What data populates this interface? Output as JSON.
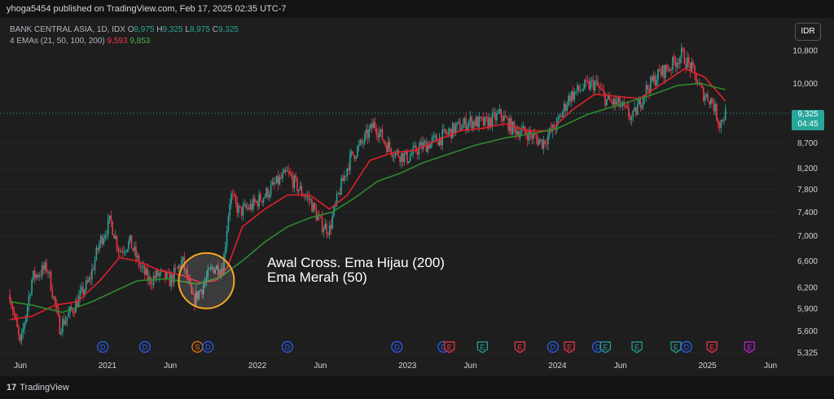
{
  "header": {
    "published_text": "yhoga5454 published on TradingView.com, Feb 17, 2025 02:35 UTC-7"
  },
  "legend": {
    "symbol_line": "BANK CENTRAL ASIA, 1D, IDX",
    "ohlc": {
      "o_label": "O",
      "o": "8,975",
      "h_label": "H",
      "h": "9,325",
      "l_label": "L",
      "l": "8,975",
      "c_label": "C",
      "c": "9,325"
    },
    "ema_label": "4 EMAs (21, 50, 100, 200)",
    "ema_val_red": "9,593",
    "ema_val_green": "9,853"
  },
  "currency_button": "IDR",
  "price_tag": {
    "price": "9,325",
    "countdown": "04:45"
  },
  "annotation": {
    "line1": "Awal Cross. Ema Hijau (200)",
    "line2": "Ema Merah (50)"
  },
  "footer": {
    "brand": "TradingView",
    "logo_mark": "17"
  },
  "colors": {
    "bg": "#1e1e1e",
    "up": "#26a69a",
    "down": "#f23645",
    "ema50": "#e0202c",
    "ema200": "#2e8b2e",
    "circle": "#f5a623"
  },
  "chart_data": {
    "type": "candlestick",
    "title": "BANK CENTRAL ASIA, 1D, IDX",
    "x_ticks": [
      "Jun",
      "2021",
      "Jun",
      "2022",
      "Jun",
      "2023",
      "Jun",
      "2024",
      "Jun",
      "2025",
      "Jun"
    ],
    "x_tick_dates": [
      2020.42,
      2021.0,
      2021.42,
      2022.0,
      2022.42,
      2023.0,
      2023.42,
      2024.0,
      2024.42,
      2025.0,
      2025.42
    ],
    "y_ticks": [
      5325,
      5600,
      5900,
      6200,
      6600,
      7000,
      7400,
      7800,
      8200,
      8700,
      10000,
      10800
    ],
    "y_tick_labels": [
      "5,325",
      "5,600",
      "5,900",
      "6,200",
      "6,600",
      "7,000",
      "7,400",
      "7,800",
      "8,200",
      "8,700",
      "10,000",
      "10,800"
    ],
    "price_axis": "log",
    "last_price": 9325,
    "close_path": [
      [
        2020.35,
        6100
      ],
      [
        2020.42,
        5400
      ],
      [
        2020.5,
        6350
      ],
      [
        2020.6,
        6500
      ],
      [
        2020.68,
        5650
      ],
      [
        2020.77,
        5900
      ],
      [
        2020.88,
        6300
      ],
      [
        2020.95,
        6900
      ],
      [
        2021.02,
        7250
      ],
      [
        2021.08,
        6750
      ],
      [
        2021.15,
        6900
      ],
      [
        2021.22,
        6500
      ],
      [
        2021.28,
        6300
      ],
      [
        2021.35,
        6400
      ],
      [
        2021.42,
        6300
      ],
      [
        2021.5,
        6600
      ],
      [
        2021.57,
        6000
      ],
      [
        2021.63,
        6200
      ],
      [
        2021.7,
        6500
      ],
      [
        2021.77,
        6500
      ],
      [
        2021.82,
        7700
      ],
      [
        2021.88,
        7400
      ],
      [
        2021.96,
        7500
      ],
      [
        2022.05,
        7700
      ],
      [
        2022.12,
        7900
      ],
      [
        2022.2,
        8100
      ],
      [
        2022.28,
        7800
      ],
      [
        2022.35,
        7600
      ],
      [
        2022.42,
        7200
      ],
      [
        2022.48,
        7100
      ],
      [
        2022.55,
        7800
      ],
      [
        2022.62,
        8400
      ],
      [
        2022.7,
        8700
      ],
      [
        2022.78,
        9100
      ],
      [
        2022.85,
        8700
      ],
      [
        2022.92,
        8500
      ],
      [
        2023.0,
        8400
      ],
      [
        2023.08,
        8600
      ],
      [
        2023.15,
        8700
      ],
      [
        2023.22,
        8800
      ],
      [
        2023.32,
        9000
      ],
      [
        2023.42,
        9150
      ],
      [
        2023.52,
        9100
      ],
      [
        2023.62,
        9300
      ],
      [
        2023.7,
        9000
      ],
      [
        2023.8,
        8900
      ],
      [
        2023.9,
        8700
      ],
      [
        2024.0,
        9100
      ],
      [
        2024.08,
        9700
      ],
      [
        2024.17,
        9900
      ],
      [
        2024.25,
        10000
      ],
      [
        2024.33,
        9600
      ],
      [
        2024.42,
        9500
      ],
      [
        2024.5,
        9200
      ],
      [
        2024.58,
        9800
      ],
      [
        2024.67,
        10200
      ],
      [
        2024.75,
        10400
      ],
      [
        2024.83,
        10700
      ],
      [
        2024.9,
        10300
      ],
      [
        2024.96,
        9800
      ],
      [
        2025.03,
        9600
      ],
      [
        2025.08,
        9100
      ],
      [
        2025.12,
        9325
      ]
    ],
    "series": [
      {
        "name": "EMA 50",
        "color": "#e0202c",
        "values": [
          [
            2020.35,
            5750
          ],
          [
            2020.5,
            5800
          ],
          [
            2020.65,
            5950
          ],
          [
            2020.8,
            6000
          ],
          [
            2020.95,
            6300
          ],
          [
            2021.08,
            6650
          ],
          [
            2021.2,
            6600
          ],
          [
            2021.35,
            6450
          ],
          [
            2021.5,
            6380
          ],
          [
            2021.62,
            6270
          ],
          [
            2021.72,
            6300
          ],
          [
            2021.8,
            6500
          ],
          [
            2021.9,
            7150
          ],
          [
            2022.05,
            7450
          ],
          [
            2022.2,
            7700
          ],
          [
            2022.35,
            7700
          ],
          [
            2022.48,
            7450
          ],
          [
            2022.6,
            7700
          ],
          [
            2022.75,
            8350
          ],
          [
            2022.9,
            8500
          ],
          [
            2023.05,
            8550
          ],
          [
            2023.2,
            8750
          ],
          [
            2023.35,
            8950
          ],
          [
            2023.5,
            9000
          ],
          [
            2023.65,
            9100
          ],
          [
            2023.8,
            8950
          ],
          [
            2023.95,
            8950
          ],
          [
            2024.1,
            9400
          ],
          [
            2024.25,
            9750
          ],
          [
            2024.4,
            9700
          ],
          [
            2024.55,
            9650
          ],
          [
            2024.7,
            10000
          ],
          [
            2024.85,
            10350
          ],
          [
            2024.98,
            10150
          ],
          [
            2025.12,
            9593
          ]
        ]
      },
      {
        "name": "EMA 200",
        "color": "#2e8b2e",
        "values": [
          [
            2020.35,
            6000
          ],
          [
            2020.5,
            5950
          ],
          [
            2020.7,
            5850
          ],
          [
            2020.9,
            6000
          ],
          [
            2021.05,
            6150
          ],
          [
            2021.2,
            6300
          ],
          [
            2021.4,
            6330
          ],
          [
            2021.6,
            6250
          ],
          [
            2021.75,
            6350
          ],
          [
            2021.9,
            6600
          ],
          [
            2022.05,
            6900
          ],
          [
            2022.2,
            7150
          ],
          [
            2022.35,
            7300
          ],
          [
            2022.5,
            7400
          ],
          [
            2022.65,
            7650
          ],
          [
            2022.8,
            7950
          ],
          [
            2022.95,
            8100
          ],
          [
            2023.1,
            8300
          ],
          [
            2023.25,
            8450
          ],
          [
            2023.45,
            8650
          ],
          [
            2023.65,
            8800
          ],
          [
            2023.85,
            8900
          ],
          [
            2024.0,
            9000
          ],
          [
            2024.2,
            9300
          ],
          [
            2024.4,
            9500
          ],
          [
            2024.6,
            9700
          ],
          [
            2024.8,
            9950
          ],
          [
            2024.95,
            10000
          ],
          [
            2025.12,
            9853
          ]
        ]
      }
    ],
    "events": [
      {
        "label": "D",
        "x": 2020.97,
        "color": "#2962ff"
      },
      {
        "label": "D",
        "x": 2021.25,
        "color": "#2962ff"
      },
      {
        "label": "S",
        "x": 2021.6,
        "color": "#f57c00"
      },
      {
        "label": "D",
        "x": 2021.67,
        "color": "#2962ff"
      },
      {
        "label": "D",
        "x": 2022.2,
        "color": "#2962ff"
      },
      {
        "label": "D",
        "x": 2022.93,
        "color": "#2962ff"
      },
      {
        "label": "D",
        "x": 2023.24,
        "color": "#2962ff"
      },
      {
        "label": "E",
        "x": 2023.28,
        "color": "#f23645"
      },
      {
        "label": "E",
        "x": 2023.5,
        "color": "#26a69a"
      },
      {
        "label": "E",
        "x": 2023.75,
        "color": "#f23645"
      },
      {
        "label": "D",
        "x": 2023.97,
        "color": "#2962ff"
      },
      {
        "label": "E",
        "x": 2024.08,
        "color": "#f23645"
      },
      {
        "label": "D",
        "x": 2024.27,
        "color": "#2962ff"
      },
      {
        "label": "E",
        "x": 2024.32,
        "color": "#26a69a"
      },
      {
        "label": "E",
        "x": 2024.53,
        "color": "#26a69a"
      },
      {
        "label": "E",
        "x": 2024.79,
        "color": "#26a69a"
      },
      {
        "label": "D",
        "x": 2024.86,
        "color": "#2962ff"
      },
      {
        "label": "E",
        "x": 2025.03,
        "color": "#f23645"
      },
      {
        "label": "E",
        "x": 2025.28,
        "color": "#c71fd6"
      }
    ],
    "highlight": {
      "shape": "circle",
      "x": 2021.66,
      "price": 6300,
      "color": "#f5a623"
    },
    "grid": false,
    "legend_position": "top-left"
  }
}
